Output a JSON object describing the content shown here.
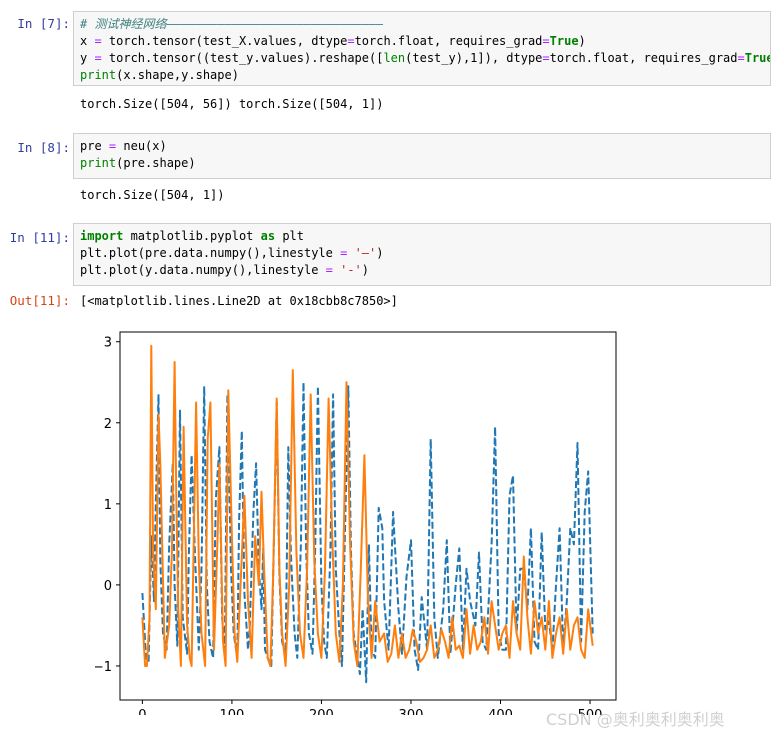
{
  "cells": [
    {
      "prompt": "In  [7]:",
      "lines": [
        [
          {
            "t": "# 测试神经网络——————————————————————————————",
            "c": "cm"
          }
        ],
        [
          {
            "t": "x "
          },
          {
            "t": "=",
            "c": "op"
          },
          {
            "t": " torch.tensor(test_X.values, dtype"
          },
          {
            "t": "=",
            "c": "op"
          },
          {
            "t": "torch.float, requires_grad"
          },
          {
            "t": "=",
            "c": "op"
          },
          {
            "t": "True",
            "c": "kw"
          },
          {
            "t": ")"
          }
        ],
        [
          {
            "t": "y "
          },
          {
            "t": "=",
            "c": "op"
          },
          {
            "t": " torch.tensor((test_y.values).reshape(["
          },
          {
            "t": "len",
            "c": "bi"
          },
          {
            "t": "(test_y),1]), dtype"
          },
          {
            "t": "=",
            "c": "op"
          },
          {
            "t": "torch.float, requires_grad"
          },
          {
            "t": "=",
            "c": "op"
          },
          {
            "t": "True",
            "c": "kw"
          },
          {
            "t": ")"
          }
        ],
        [
          {
            "t": "print",
            "c": "bi"
          },
          {
            "t": "(x.shape,y.shape)"
          }
        ]
      ],
      "output": "torch.Size([504, 56]) torch.Size([504, 1])"
    },
    {
      "prompt": "In  [8]:",
      "lines": [
        [
          {
            "t": "pre "
          },
          {
            "t": "=",
            "c": "op"
          },
          {
            "t": " neu(x)"
          }
        ],
        [
          {
            "t": "print",
            "c": "bi"
          },
          {
            "t": "(pre.shape)"
          }
        ]
      ],
      "output": "torch.Size([504, 1])"
    },
    {
      "prompt": "In  [11]:",
      "lines": [
        [
          {
            "t": "import",
            "c": "kw"
          },
          {
            "t": " matplotlib.pyplot "
          },
          {
            "t": "as",
            "c": "kw"
          },
          {
            "t": " plt"
          }
        ],
        [
          {
            "t": "plt.plot(pre.data.numpy(),linestyle "
          },
          {
            "t": "=",
            "c": "op"
          },
          {
            "t": " "
          },
          {
            "t": "'—'",
            "c": "str"
          },
          {
            "t": ")"
          }
        ],
        [
          {
            "t": "plt.plot(y.data.numpy(),linestyle "
          },
          {
            "t": "=",
            "c": "op"
          },
          {
            "t": " "
          },
          {
            "t": "'-'",
            "c": "str"
          },
          {
            "t": ")"
          }
        ]
      ],
      "out_prompt": "Out[11]:",
      "output": "[<matplotlib.lines.Line2D at 0x18cbb8c7850>]"
    }
  ],
  "chart_data": {
    "type": "line",
    "title": "",
    "xlabel": "",
    "ylabel": "",
    "xlim": [
      -25,
      529
    ],
    "ylim": [
      -1.42,
      3.12
    ],
    "xticks": [
      0,
      100,
      200,
      300,
      400,
      500
    ],
    "yticks": [
      -1,
      0,
      1,
      2,
      3
    ],
    "grid": false,
    "series": [
      {
        "color": "#1f77b4",
        "linestyle": "dashed",
        "x": [
          0,
          4,
          7,
          10,
          13,
          15,
          18,
          20,
          23,
          27,
          30,
          34,
          36,
          39,
          42,
          45,
          50,
          52,
          55,
          59,
          63,
          66,
          69,
          72,
          75,
          79,
          82,
          86,
          89,
          92,
          95,
          99,
          102,
          106,
          108,
          111,
          114,
          118,
          120,
          124,
          127,
          130,
          133,
          135,
          137,
          140,
          144,
          147,
          150,
          153,
          156,
          160,
          163,
          166,
          170,
          173,
          177,
          180,
          183,
          186,
          190,
          193,
          196,
          200,
          203,
          206,
          210,
          213,
          216,
          220,
          223,
          226,
          230,
          233,
          236,
          240,
          243,
          246,
          250,
          253,
          256,
          260,
          264,
          268,
          270,
          275,
          280,
          286,
          290,
          295,
          300,
          304,
          308,
          312,
          318,
          322,
          326,
          330,
          336,
          340,
          344,
          350,
          354,
          358,
          362,
          366,
          372,
          376,
          380,
          384,
          390,
          394,
          398,
          402,
          406,
          410,
          414,
          418,
          422,
          426,
          430,
          434,
          438,
          442,
          446,
          450,
          454,
          458,
          462,
          466,
          470,
          474,
          478,
          482,
          486,
          490,
          494,
          498,
          503
        ],
        "values": [
          -0.1,
          -0.9,
          -0.95,
          0.6,
          -0.2,
          1.0,
          2.35,
          0.3,
          -0.6,
          -0.8,
          0.5,
          1.5,
          0.0,
          -0.75,
          2.15,
          -0.4,
          -0.85,
          0.4,
          1.6,
          0.3,
          -0.8,
          0.2,
          2.45,
          0.0,
          -0.7,
          -0.9,
          1.05,
          1.7,
          -0.4,
          -0.8,
          2.35,
          0.2,
          -0.6,
          -0.9,
          0.8,
          1.9,
          -0.1,
          -0.8,
          -0.5,
          0.9,
          1.5,
          0.2,
          -0.3,
          0.45,
          -0.8,
          -0.9,
          -1.0,
          0.6,
          2.25,
          0.1,
          -0.7,
          -0.85,
          1.7,
          0.35,
          -0.6,
          -0.9,
          0.5,
          2.5,
          0.4,
          -0.6,
          -0.85,
          0.45,
          2.45,
          0.0,
          -0.7,
          -0.9,
          0.4,
          2.35,
          0.2,
          -0.6,
          -1.0,
          0.5,
          2.45,
          0.4,
          -0.6,
          -0.9,
          -1.1,
          -0.3,
          -1.2,
          0.5,
          -0.8,
          -0.9,
          0.95,
          0.7,
          -0.2,
          -0.8,
          0.9,
          -0.3,
          -0.85,
          0.1,
          0.55,
          -0.8,
          -1.05,
          -0.15,
          -0.8,
          1.8,
          -0.4,
          -0.9,
          -0.3,
          0.55,
          -0.85,
          0.0,
          0.45,
          -0.8,
          0.2,
          -0.2,
          -0.5,
          0.4,
          -0.7,
          -0.8,
          0.5,
          1.95,
          -0.6,
          -0.8,
          -0.8,
          1.1,
          1.35,
          -0.6,
          0.2,
          0.2,
          -0.3,
          0.7,
          -0.7,
          -0.8,
          0.65,
          -0.55,
          -0.45,
          -0.8,
          0.0,
          0.7,
          -0.8,
          -0.2,
          0.7,
          0.5,
          1.75,
          -0.7,
          0.9,
          1.4,
          -0.6
        ]
      },
      {
        "color": "#ff7f0e",
        "linestyle": "solid",
        "x": [
          0,
          3,
          5,
          8,
          10,
          12,
          15,
          18,
          20,
          25,
          30,
          33,
          36,
          38,
          40,
          43,
          46,
          50,
          53,
          55,
          60,
          63,
          66,
          70,
          73,
          76,
          80,
          84,
          86,
          90,
          93,
          96,
          100,
          103,
          106,
          110,
          114,
          118,
          122,
          126,
          130,
          133,
          136,
          140,
          143,
          146,
          150,
          153,
          156,
          160,
          164,
          168,
          172,
          176,
          180,
          184,
          188,
          192,
          196,
          200,
          204,
          208,
          212,
          216,
          220,
          224,
          228,
          232,
          236,
          240,
          244,
          248,
          252,
          256,
          260,
          265,
          270,
          274,
          278,
          282,
          286,
          290,
          294,
          298,
          302,
          306,
          310,
          314,
          318,
          322,
          326,
          330,
          334,
          338,
          342,
          346,
          350,
          354,
          358,
          362,
          366,
          370,
          374,
          378,
          382,
          386,
          390,
          394,
          398,
          402,
          406,
          410,
          414,
          418,
          422,
          426,
          430,
          434,
          438,
          442,
          446,
          450,
          454,
          458,
          462,
          466,
          470,
          474,
          478,
          482,
          486,
          490,
          494,
          498,
          503
        ],
        "values": [
          -0.4,
          -1.0,
          -1.0,
          -0.4,
          2.95,
          0.4,
          -0.3,
          2.1,
          1.5,
          -0.9,
          -0.5,
          0.4,
          2.75,
          1.0,
          -0.3,
          -1.0,
          1.95,
          -0.5,
          -0.9,
          -1.0,
          2.25,
          0.3,
          -0.6,
          -1.0,
          1.8,
          2.25,
          -0.8,
          0.6,
          1.5,
          -0.7,
          -1.0,
          2.4,
          0.6,
          -0.6,
          -0.95,
          0.1,
          1.1,
          -0.2,
          -0.9,
          0.6,
          0.0,
          1.15,
          0.2,
          -0.9,
          -1.0,
          0.1,
          2.3,
          0.2,
          -0.6,
          -1.0,
          0.0,
          2.65,
          0.4,
          -0.6,
          -0.9,
          0.2,
          2.35,
          0.3,
          -0.6,
          -0.9,
          0.2,
          2.3,
          0.6,
          -0.6,
          -0.95,
          0.0,
          2.5,
          0.5,
          -0.7,
          -1.0,
          0.2,
          1.6,
          -0.2,
          -0.9,
          -0.2,
          -0.7,
          -0.6,
          -0.95,
          -0.85,
          -0.5,
          -0.9,
          -0.6,
          -0.9,
          -0.8,
          -0.55,
          -0.7,
          -0.95,
          -0.9,
          -0.8,
          -0.5,
          -0.9,
          -0.8,
          -0.55,
          -0.7,
          -0.9,
          -0.4,
          -0.8,
          -0.75,
          -0.9,
          -0.3,
          -0.85,
          -0.5,
          -0.8,
          -0.7,
          -0.4,
          -0.85,
          -0.2,
          -0.5,
          -0.8,
          -0.6,
          -0.5,
          -0.9,
          -0.2,
          -0.6,
          -0.8,
          0.35,
          -0.4,
          -0.85,
          -0.2,
          -0.6,
          -0.4,
          -0.8,
          -0.2,
          -0.9,
          -0.6,
          -0.4,
          -0.85,
          -0.3,
          -0.8,
          -0.5,
          -0.4,
          -0.8,
          -0.9,
          -0.3,
          -0.75
        ]
      }
    ]
  },
  "watermark": "CSDN @奥利奥利奥利奥"
}
